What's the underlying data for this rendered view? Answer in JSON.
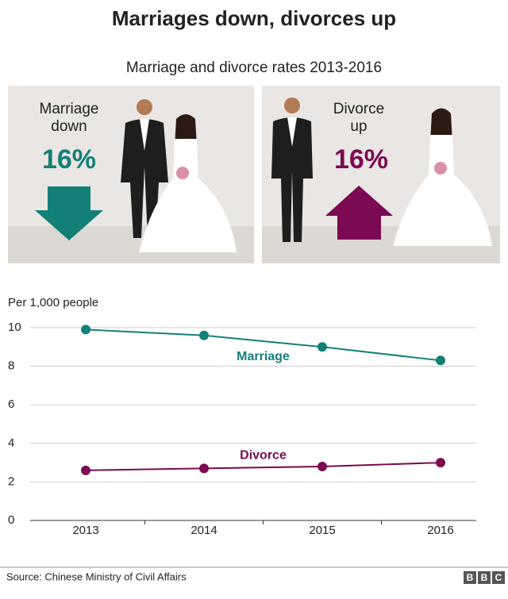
{
  "header": {
    "title": "Marriages down, divorces up",
    "subtitle": "Marriage and divorce rates 2013-2016"
  },
  "panels": [
    {
      "label_lines": [
        "Marriage",
        "down"
      ],
      "change": "16%",
      "color": "#138078"
    },
    {
      "label_lines": [
        "Divorce",
        "up"
      ],
      "change": "16%",
      "color": "#7b0a52"
    }
  ],
  "chart_data": {
    "type": "line",
    "y_label": "Per 1,000 people",
    "categories": [
      "2013",
      "2014",
      "2015",
      "2016"
    ],
    "series": [
      {
        "name": "Marriage",
        "color": "#138078",
        "values": [
          9.9,
          9.6,
          9.0,
          8.3
        ]
      },
      {
        "name": "Divorce",
        "color": "#7b0a52",
        "values": [
          2.6,
          2.7,
          2.8,
          3.0
        ]
      }
    ],
    "ylim": [
      0,
      10
    ],
    "yticks": [
      0,
      2,
      4,
      6,
      8,
      10
    ],
    "grid": true
  },
  "footer": {
    "source": "Source: Chinese Ministry of Civil Affairs",
    "logo": [
      "B",
      "B",
      "C"
    ]
  }
}
